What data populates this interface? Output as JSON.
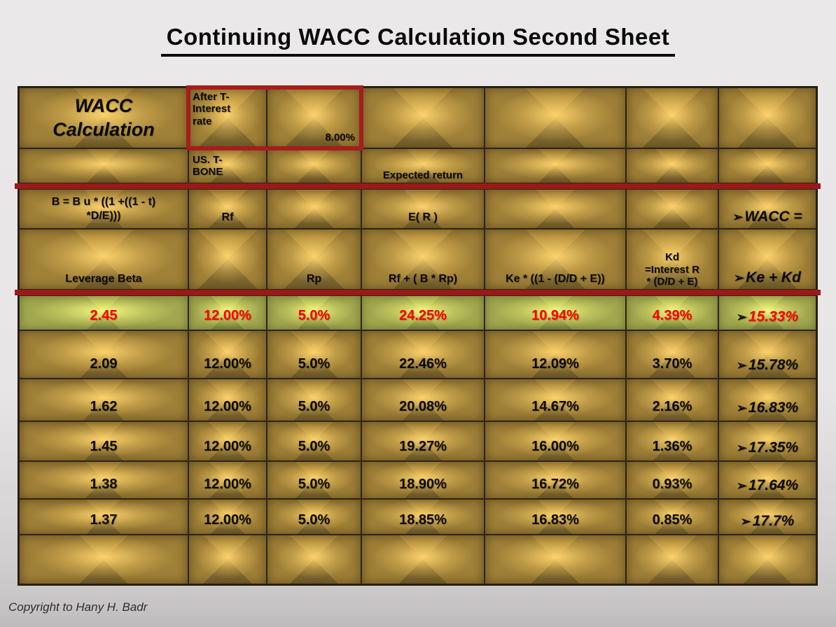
{
  "slide": {
    "title": "Continuing WACC Calculation Second Sheet",
    "copyright": "Copyright to Hany H. Badr"
  },
  "icons": {
    "arrow_bullet": "➢"
  },
  "colors": {
    "background_top": "#ebe8e9",
    "background_bottom": "#bdbabb",
    "gold_cell_mid": "#a08138",
    "gold_cell_highlight": "#f2c566",
    "green_row_mid": "#a3a850",
    "green_row_highlight": "#eef07b",
    "red_accent_line": "#9b1919",
    "red_accent_box": "#a51d1d",
    "highlight_row_text": "#fe0000",
    "default_text": "#0a0a0a"
  },
  "table": {
    "header": {
      "wacc_calculation": "WACC\nCalculation",
      "after_t_interest_rate": "After T-\nInterest\nrate",
      "after_t_interest_value": "8.00%",
      "us_t_bone": "US. T-\nBONE",
      "expected_return": "Expected return",
      "beta_formula": "B = B u * ((1 +((1 - t)\n*D/E)))",
      "rf_label": "Rf",
      "expected_return_symbol": "E( R )",
      "wacc_equals": "WACC =",
      "leverage_beta": "Leverage Beta",
      "rp_label": "Rp",
      "ke_formula": "Rf + ( B * Rp)",
      "ke_adjusted_formula": "Ke * ((1 - (D/D + E))",
      "kd_formula": "Kd\n=Interest R\n* (D/D + E)",
      "ke_plus_kd": "Ke + Kd"
    },
    "rows": [
      {
        "leverage_beta": "2.45",
        "rf": "12.00%",
        "rp": "5.0%",
        "expected_return": "24.25%",
        "ke": "10.94%",
        "kd": "4.39%",
        "wacc": "15.33%"
      },
      {
        "leverage_beta": "2.09",
        "rf": "12.00%",
        "rp": "5.0%",
        "expected_return": "22.46%",
        "ke": "12.09%",
        "kd": "3.70%",
        "wacc": "15.78%"
      },
      {
        "leverage_beta": "1.62",
        "rf": "12.00%",
        "rp": "5.0%",
        "expected_return": "20.08%",
        "ke": "14.67%",
        "kd": "2.16%",
        "wacc": "16.83%"
      },
      {
        "leverage_beta": "1.45",
        "rf": "12.00%",
        "rp": "5.0%",
        "expected_return": "19.27%",
        "ke": "16.00%",
        "kd": "1.36%",
        "wacc": "17.35%"
      },
      {
        "leverage_beta": "1.38",
        "rf": "12.00%",
        "rp": "5.0%",
        "expected_return": "18.90%",
        "ke": "16.72%",
        "kd": "0.93%",
        "wacc": "17.64%"
      },
      {
        "leverage_beta": "1.37",
        "rf": "12.00%",
        "rp": "5.0%",
        "expected_return": "18.85%",
        "ke": "16.83%",
        "kd": "0.85%",
        "wacc": "17.7%"
      }
    ]
  }
}
